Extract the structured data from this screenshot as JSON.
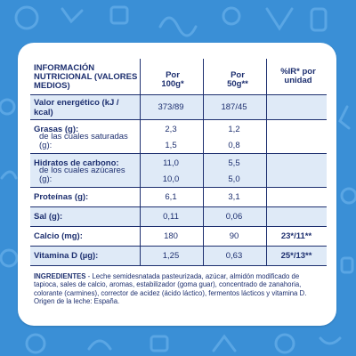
{
  "header": {
    "label": "INFORMACIÓN NUTRICIONAL (VALORES MEDIOS)",
    "col1": "Por 100g*",
    "col2": "Por 50g**",
    "col3": "%IR* por unidad"
  },
  "rows": [
    {
      "label": "Valor energético (kJ / kcal)",
      "v1": "373/89",
      "v2": "187/45",
      "v3": ""
    },
    {
      "label": "Grasas (g):",
      "v1": "2,3",
      "v2": "1,2",
      "v3": ""
    },
    {
      "label": "de las cuales saturadas (g):",
      "v1": "1,5",
      "v2": "0,8",
      "v3": ""
    },
    {
      "label": "Hidratos de carbono:",
      "v1": "11,0",
      "v2": "5,5",
      "v3": ""
    },
    {
      "label": "de los cuales azúcares (g):",
      "v1": "10,0",
      "v2": "5,0",
      "v3": ""
    },
    {
      "label": "Proteínas (g):",
      "v1": "6,1",
      "v2": "3,1",
      "v3": ""
    },
    {
      "label": "Sal (g):",
      "v1": "0,11",
      "v2": "0,06",
      "v3": ""
    },
    {
      "label": "Calcio (mg):",
      "v1": "180",
      "v2": "90",
      "v3": "23*/11**"
    },
    {
      "label": "Vitamina D (µg):",
      "v1": "1,25",
      "v2": "0,63",
      "v3": "25*/13**"
    }
  ],
  "ingredients": {
    "title": "INGREDIENTES",
    "text": " - Leche semidesnatada pasteurizada, azúcar, almidón modificado de tapioca, sales de calcio, aromas, estabilizador (goma guar), concentrado de zanahoria, colorante (carmines), corrector de acidez (ácido láctico), fermentos lácticos y vitamina D. Origen de la leche: España."
  },
  "colors": {
    "background": "#3a8fd6",
    "text": "#1d2f6f",
    "row_shade": "#dfeaf7"
  }
}
